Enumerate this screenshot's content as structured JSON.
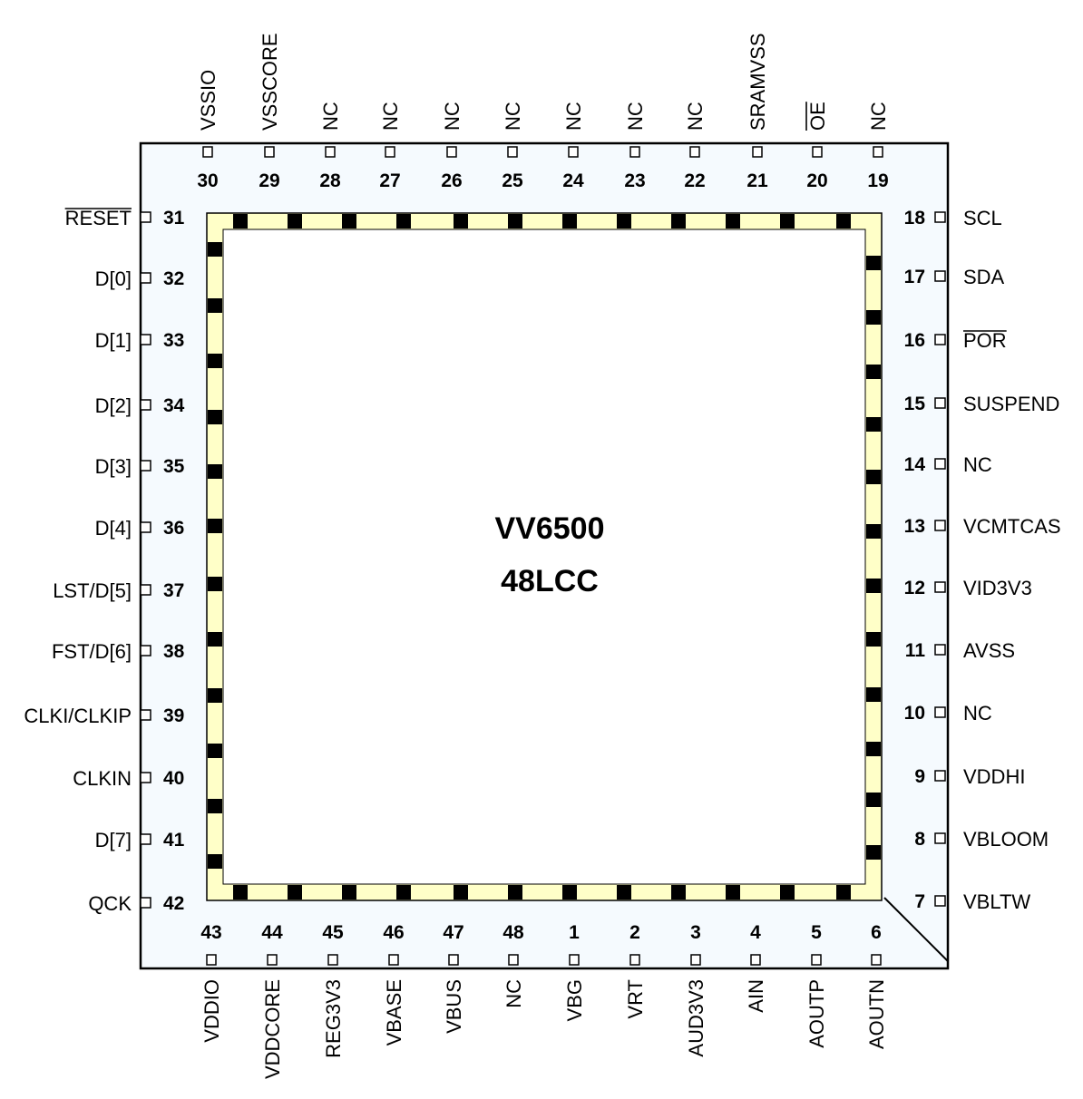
{
  "chip": {
    "name": "VV6500",
    "package": "48LCC"
  },
  "colors": {
    "package_fill": "#F5FAFE",
    "die_ring": "#FFFFC8",
    "die_pad": "#000000",
    "outline": "#000000"
  },
  "pins": {
    "top": [
      {
        "num": "30",
        "name": "VSSIO"
      },
      {
        "num": "29",
        "name": "VSSCORE"
      },
      {
        "num": "28",
        "name": "NC"
      },
      {
        "num": "27",
        "name": "NC"
      },
      {
        "num": "26",
        "name": "NC"
      },
      {
        "num": "25",
        "name": "NC"
      },
      {
        "num": "24",
        "name": "NC"
      },
      {
        "num": "23",
        "name": "NC"
      },
      {
        "num": "22",
        "name": "NC"
      },
      {
        "num": "21",
        "name": "SRAMVSS"
      },
      {
        "num": "20",
        "name": "OE",
        "overline": true
      },
      {
        "num": "19",
        "name": "NC"
      }
    ],
    "right": [
      {
        "num": "18",
        "name": "SCL"
      },
      {
        "num": "17",
        "name": "SDA"
      },
      {
        "num": "16",
        "name": "POR",
        "overline": true
      },
      {
        "num": "15",
        "name": "SUSPEND"
      },
      {
        "num": "14",
        "name": "NC"
      },
      {
        "num": "13",
        "name": "VCMTCAS"
      },
      {
        "num": "12",
        "name": "VID3V3"
      },
      {
        "num": "11",
        "name": "AVSS"
      },
      {
        "num": "10",
        "name": "NC"
      },
      {
        "num": "9",
        "name": "VDDHI"
      },
      {
        "num": "8",
        "name": "VBLOOM"
      },
      {
        "num": "7",
        "name": "VBLTW"
      }
    ],
    "left": [
      {
        "num": "31",
        "name": "RESET",
        "overline": true
      },
      {
        "num": "32",
        "name": "D[0]"
      },
      {
        "num": "33",
        "name": "D[1]"
      },
      {
        "num": "34",
        "name": "D[2]"
      },
      {
        "num": "35",
        "name": "D[3]"
      },
      {
        "num": "36",
        "name": "D[4]"
      },
      {
        "num": "37",
        "name": "LST/D[5]"
      },
      {
        "num": "38",
        "name": "FST/D[6]"
      },
      {
        "num": "39",
        "name": "CLKI/CLKIP"
      },
      {
        "num": "40",
        "name": "CLKIN"
      },
      {
        "num": "41",
        "name": "D[7]"
      },
      {
        "num": "42",
        "name": "QCK"
      }
    ],
    "bottom": [
      {
        "num": "43",
        "name": "VDDIO"
      },
      {
        "num": "44",
        "name": "VDDCORE"
      },
      {
        "num": "45",
        "name": "REG3V3"
      },
      {
        "num": "46",
        "name": "VBASE"
      },
      {
        "num": "47",
        "name": "VBUS"
      },
      {
        "num": "48",
        "name": "NC"
      },
      {
        "num": "1",
        "name": "VBG"
      },
      {
        "num": "2",
        "name": "VRT"
      },
      {
        "num": "3",
        "name": "AUD3V3"
      },
      {
        "num": "4",
        "name": "AIN"
      },
      {
        "num": "5",
        "name": "AOUTP"
      },
      {
        "num": "6",
        "name": "AOUTN"
      }
    ]
  }
}
